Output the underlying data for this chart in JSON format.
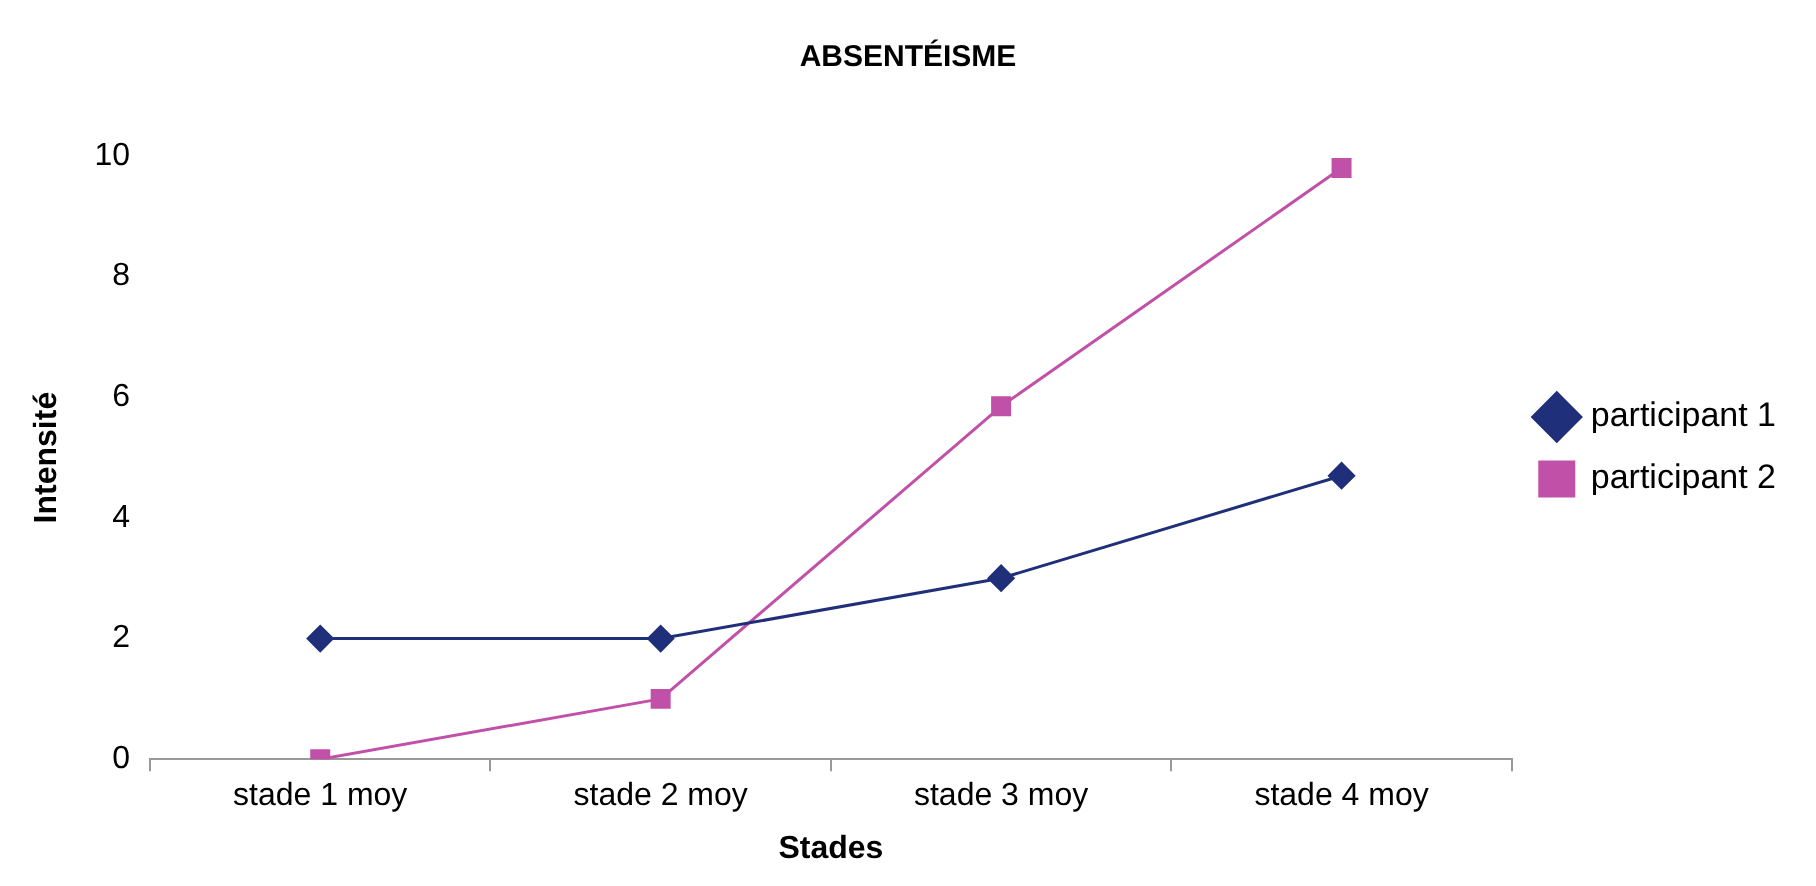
{
  "chart_data": {
    "type": "line",
    "title": "ABSENTÉISME",
    "xlabel": "Stades",
    "ylabel": "Intensité",
    "categories": [
      "stade 1 moy",
      "stade 2 moy",
      "stade 3 moy",
      "stade 4 moy"
    ],
    "series": [
      {
        "name": "participant 1",
        "color": "#1f2f7a",
        "marker": "diamond",
        "values": [
          2,
          2,
          3,
          4.7
        ]
      },
      {
        "name": "participant 2",
        "color": "#c050a8",
        "marker": "square",
        "values": [
          0,
          1,
          5.85,
          9.8
        ]
      }
    ],
    "ylim": [
      0,
      10
    ],
    "yticks": [
      0,
      2,
      4,
      6,
      8,
      10
    ],
    "grid": false,
    "legend": "right",
    "line_style": "solid"
  }
}
